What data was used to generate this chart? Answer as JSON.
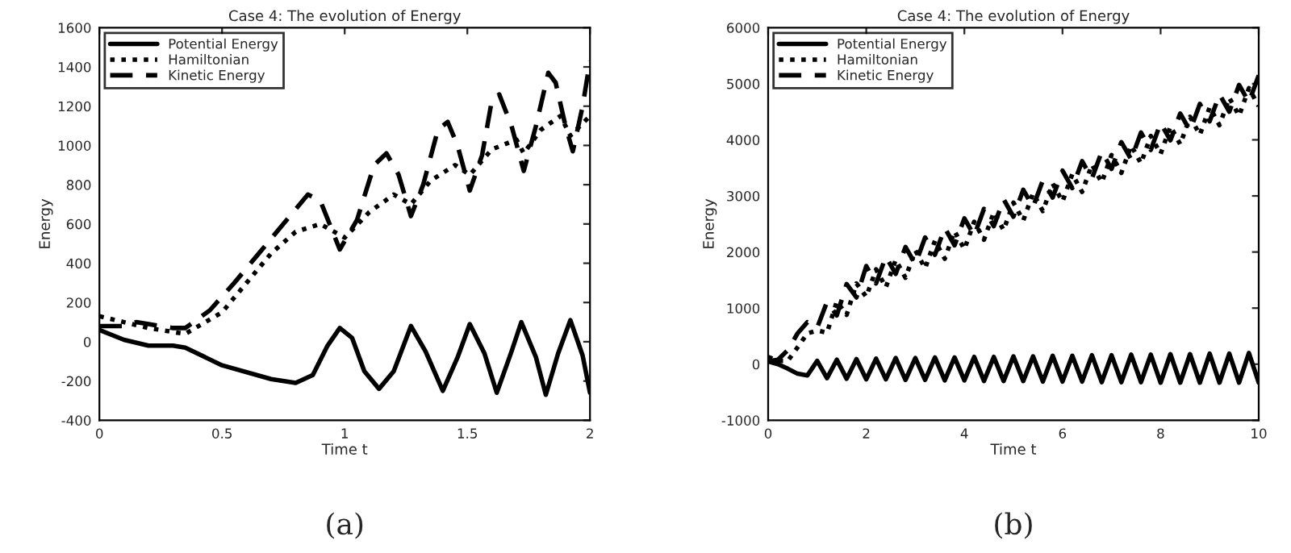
{
  "chart_data": [
    {
      "type": "line",
      "title": "Case 4: The evolution of Energy",
      "xlabel": "Time t",
      "ylabel": "Energy",
      "xlim": [
        0,
        2
      ],
      "xticks": [
        0,
        0.5,
        1,
        1.5,
        2
      ],
      "ylim": [
        -400,
        1600
      ],
      "yticks": [
        -400,
        -200,
        0,
        200,
        400,
        600,
        800,
        1000,
        1200,
        1400,
        1600
      ],
      "grid": false,
      "legend": "top left",
      "annotations": [
        "(a)"
      ],
      "series": [
        {
          "name": "Potential Energy",
          "color": "#000000",
          "line_style": "solid",
          "x": [
            0,
            0.1,
            0.2,
            0.3,
            0.35,
            0.5,
            0.7,
            0.8,
            0.87,
            0.93,
            0.98,
            1.03,
            1.08,
            1.14,
            1.2,
            1.27,
            1.33,
            1.4,
            1.46,
            1.51,
            1.57,
            1.62,
            1.68,
            1.72,
            1.78,
            1.82,
            1.87,
            1.92,
            1.97,
            2.0
          ],
          "values": [
            60,
            10,
            -20,
            -20,
            -30,
            -120,
            -190,
            -210,
            -170,
            -20,
            70,
            20,
            -150,
            -240,
            -150,
            80,
            -50,
            -250,
            -80,
            90,
            -60,
            -260,
            -50,
            100,
            -80,
            -270,
            -60,
            110,
            -70,
            -260
          ]
        },
        {
          "name": "Hamiltonian",
          "color": "#000000",
          "line_style": "dotted",
          "x": [
            0,
            0.1,
            0.2,
            0.35,
            0.5,
            0.6,
            0.7,
            0.8,
            0.9,
            1.0,
            1.1,
            1.2,
            1.27,
            1.35,
            1.45,
            1.51,
            1.6,
            1.7,
            1.73,
            1.8,
            1.88,
            1.92,
            2.0
          ],
          "values": [
            130,
            100,
            70,
            40,
            150,
            300,
            450,
            560,
            600,
            530,
            660,
            750,
            700,
            820,
            900,
            850,
            980,
            1030,
            960,
            1080,
            1150,
            1050,
            1150
          ]
        },
        {
          "name": "Kinetic Energy",
          "color": "#000000",
          "line_style": "dashed",
          "x": [
            0,
            0.1,
            0.15,
            0.2,
            0.3,
            0.35,
            0.45,
            0.55,
            0.65,
            0.75,
            0.85,
            0.9,
            0.98,
            1.05,
            1.12,
            1.17,
            1.22,
            1.27,
            1.32,
            1.38,
            1.42,
            1.46,
            1.51,
            1.56,
            1.6,
            1.63,
            1.68,
            1.73,
            1.78,
            1.83,
            1.86,
            1.9,
            1.93,
            1.97,
            2.0
          ],
          "values": [
            80,
            80,
            100,
            90,
            70,
            70,
            160,
            300,
            450,
            600,
            750,
            720,
            470,
            620,
            900,
            960,
            850,
            640,
            800,
            1080,
            1120,
            1000,
            770,
            950,
            1230,
            1260,
            1100,
            870,
            1100,
            1370,
            1320,
            1100,
            970,
            1200,
            1430
          ]
        }
      ]
    },
    {
      "type": "line",
      "title": "Case 4: The evolution of Energy",
      "xlabel": "Time t",
      "ylabel": "Energy",
      "xlim": [
        0,
        10
      ],
      "xticks": [
        0,
        2,
        4,
        6,
        8,
        10
      ],
      "ylim": [
        -1000,
        6000
      ],
      "yticks": [
        -1000,
        0,
        1000,
        2000,
        3000,
        4000,
        5000,
        6000
      ],
      "grid": false,
      "legend": "top left",
      "annotations": [
        "(b)"
      ],
      "series": [
        {
          "name": "Potential Energy",
          "color": "#000000",
          "line_style": "solid",
          "x": [
            0,
            0.2,
            0.4,
            0.6,
            0.8,
            1.0,
            1.2,
            1.4,
            1.6,
            1.8,
            2.0,
            2.2,
            2.4,
            2.6,
            2.8,
            3.0,
            3.2,
            3.4,
            3.6,
            3.8,
            4.0,
            4.2,
            4.4,
            4.6,
            4.8,
            5.0,
            5.2,
            5.4,
            5.6,
            5.8,
            6.0,
            6.2,
            6.4,
            6.6,
            6.8,
            7.0,
            7.2,
            7.4,
            7.6,
            7.8,
            8.0,
            8.2,
            8.4,
            8.6,
            8.8,
            9.0,
            9.2,
            9.4,
            9.6,
            9.8,
            10.0
          ],
          "values": [
            50,
            0,
            -80,
            -170,
            -200,
            60,
            -250,
            80,
            -260,
            90,
            -270,
            100,
            -270,
            110,
            -280,
            110,
            -280,
            120,
            -290,
            120,
            -290,
            130,
            -300,
            130,
            -300,
            140,
            -300,
            140,
            -310,
            150,
            -310,
            150,
            -310,
            160,
            -320,
            160,
            -320,
            170,
            -320,
            170,
            -330,
            180,
            -330,
            180,
            -330,
            190,
            -330,
            190,
            -330,
            200,
            -330
          ]
        },
        {
          "name": "Hamiltonian",
          "color": "#000000",
          "line_style": "dotted",
          "x": [
            0,
            0.2,
            0.4,
            0.6,
            0.8,
            1.0,
            1.2,
            1.4,
            1.6,
            1.8,
            2.0,
            2.2,
            2.4,
            2.6,
            2.8,
            3.0,
            3.2,
            3.4,
            3.6,
            3.8,
            4.0,
            4.2,
            4.4,
            4.6,
            4.8,
            5.0,
            5.2,
            5.4,
            5.6,
            5.8,
            6.0,
            6.2,
            6.4,
            6.6,
            6.8,
            7.0,
            7.2,
            7.4,
            7.6,
            7.8,
            8.0,
            8.2,
            8.4,
            8.6,
            8.8,
            9.0,
            9.2,
            9.4,
            9.6,
            9.8,
            10.0
          ],
          "values": [
            130,
            60,
            60,
            300,
            550,
            600,
            560,
            1120,
            880,
            1440,
            1200,
            1690,
            1370,
            1860,
            1540,
            2030,
            1710,
            2200,
            1880,
            2370,
            2050,
            2540,
            2220,
            2710,
            2390,
            2880,
            2560,
            3050,
            2730,
            3220,
            2900,
            3390,
            3070,
            3560,
            3240,
            3730,
            3410,
            3900,
            3580,
            4070,
            3750,
            4240,
            3920,
            4410,
            4090,
            4580,
            4260,
            4750,
            4430,
            4920,
            4600
          ]
        },
        {
          "name": "Kinetic Energy",
          "color": "#000000",
          "line_style": "dashed",
          "x": [
            0,
            0.2,
            0.4,
            0.6,
            0.8,
            1.0,
            1.2,
            1.4,
            1.6,
            1.8,
            2.0,
            2.2,
            2.4,
            2.6,
            2.8,
            3.0,
            3.2,
            3.4,
            3.6,
            3.8,
            4.0,
            4.2,
            4.4,
            4.6,
            4.8,
            5.0,
            5.2,
            5.4,
            5.6,
            5.8,
            6.0,
            6.2,
            6.4,
            6.6,
            6.8,
            7.0,
            7.2,
            7.4,
            7.6,
            7.8,
            8.0,
            8.2,
            8.4,
            8.6,
            8.8,
            9.0,
            9.2,
            9.4,
            9.6,
            9.8,
            10.0
          ],
          "values": [
            50,
            80,
            250,
            550,
            750,
            650,
            1110,
            870,
            1430,
            1190,
            1750,
            1440,
            1920,
            1610,
            2090,
            1780,
            2260,
            1950,
            2430,
            2120,
            2600,
            2290,
            2770,
            2460,
            2940,
            2630,
            3110,
            2800,
            3280,
            2970,
            3450,
            3140,
            3620,
            3310,
            3790,
            3480,
            3960,
            3650,
            4130,
            3820,
            4300,
            3990,
            4470,
            4160,
            4640,
            4330,
            4810,
            4500,
            4980,
            4670,
            5150
          ]
        }
      ]
    }
  ]
}
